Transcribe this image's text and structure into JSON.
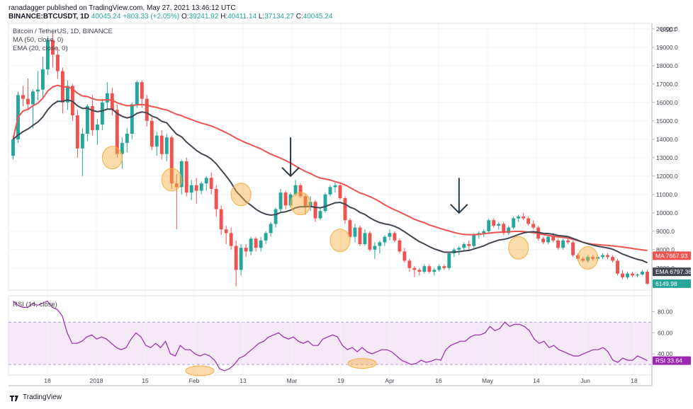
{
  "header": {
    "published": "ranadagger published on TradingView.com, May 27, 2021 13:46:12 UTC",
    "symbol": "BINANCE:BTCUSDT, 1D",
    "last": "40045.24",
    "change": "+803.33 (+2.05%)",
    "o_label": "O:",
    "o": "39241.92",
    "h_label": "H:",
    "h": "40411.14",
    "l_label": "L:",
    "l": "37134.27",
    "c_label": "C:",
    "c": "40045.24"
  },
  "legend": {
    "title": "Bitcoin / TetherUS, 1D, BINANCE",
    "ma": "MA (50, close, 0)",
    "ema": "EMA (20, close, 0)",
    "rsi": "RSI (14, close)"
  },
  "branding": {
    "name": "TradingView"
  },
  "colors": {
    "up": "#26a69a",
    "down": "#ef5350",
    "ma": "#ef5350",
    "ema": "#434651",
    "rsi": "#9c27b0",
    "rsi_band": "#e1bee7",
    "highlight": "#f5b041",
    "arrow": "#2a3944"
  },
  "chart_data": [
    {
      "type": "candlestick",
      "title": "Bitcoin / TetherUS, 1D, BINANCE",
      "currency": "USDT",
      "y_ticks": [
        7000,
        8000,
        9000,
        10000,
        11000,
        12000,
        13000,
        14000,
        15000,
        16000,
        17000,
        18000,
        19000,
        20000
      ],
      "y_range": [
        5800,
        20300
      ],
      "x_ticks": [
        "18",
        "2018",
        "15",
        "Feb",
        "13",
        "Mar",
        "19",
        "Apr",
        "16",
        "May",
        "14",
        "Jun",
        "18"
      ],
      "series": [
        {
          "name": "MA (50, close, 0)",
          "last": 7667.93
        },
        {
          "name": "EMA (20, close, 0)",
          "last": 6797.36
        }
      ],
      "last_price": 6149.98,
      "candles_ohlc": [
        [
          13100,
          14200,
          12900,
          14000
        ],
        [
          14000,
          16600,
          13800,
          16400
        ],
        [
          16400,
          16900,
          15800,
          16200
        ],
        [
          16200,
          17300,
          15600,
          15900
        ],
        [
          15900,
          16700,
          14600,
          16600
        ],
        [
          16600,
          17700,
          16100,
          16700
        ],
        [
          16700,
          18500,
          16300,
          17800
        ],
        [
          17800,
          19600,
          17500,
          19400
        ],
        [
          19400,
          19800,
          17900,
          18600
        ],
        [
          18600,
          19000,
          17300,
          17700
        ],
        [
          17700,
          17900,
          15400,
          16000
        ],
        [
          16000,
          17200,
          15600,
          16900
        ],
        [
          16900,
          17000,
          15000,
          15300
        ],
        [
          15300,
          15600,
          13000,
          13500
        ],
        [
          13500,
          14600,
          12000,
          14300
        ],
        [
          14300,
          15900,
          13900,
          15800
        ],
        [
          15800,
          16400,
          14200,
          14500
        ],
        [
          14500,
          15100,
          13700,
          14800
        ],
        [
          14800,
          16200,
          14500,
          16000
        ],
        [
          16000,
          17100,
          15600,
          16500
        ],
        [
          16500,
          16800,
          15300,
          15600
        ],
        [
          15600,
          15900,
          13000,
          13200
        ],
        [
          13200,
          14100,
          12400,
          13800
        ],
        [
          13800,
          14600,
          13300,
          14300
        ],
        [
          14300,
          16000,
          14000,
          15900
        ],
        [
          15900,
          17200,
          15700,
          17100
        ],
        [
          17100,
          17200,
          15700,
          16200
        ],
        [
          16200,
          16400,
          14700,
          15000
        ],
        [
          15000,
          15200,
          13400,
          13600
        ],
        [
          13600,
          14400,
          13100,
          14200
        ],
        [
          14200,
          14500,
          12900,
          13200
        ],
        [
          13200,
          14300,
          12800,
          14100
        ],
        [
          14100,
          14200,
          11300,
          11600
        ],
        [
          11600,
          12100,
          9100,
          11400
        ],
        [
          11400,
          12900,
          11000,
          12800
        ],
        [
          12800,
          13000,
          10900,
          11100
        ],
        [
          11100,
          11800,
          10700,
          11500
        ],
        [
          11500,
          11900,
          10500,
          11200
        ],
        [
          11200,
          11700,
          11000,
          11600
        ],
        [
          11600,
          12000,
          11200,
          11900
        ],
        [
          11900,
          12200,
          11000,
          11300
        ],
        [
          11300,
          11500,
          9800,
          10200
        ],
        [
          10200,
          10400,
          8800,
          9100
        ],
        [
          9100,
          9300,
          8300,
          8900
        ],
        [
          8900,
          9200,
          8000,
          8200
        ],
        [
          8200,
          8500,
          6000,
          6900
        ],
        [
          6900,
          8300,
          6600,
          8100
        ],
        [
          8100,
          8300,
          7600,
          7900
        ],
        [
          7900,
          8700,
          7700,
          8600
        ],
        [
          8600,
          8700,
          7900,
          8100
        ],
        [
          8100,
          8700,
          7900,
          8500
        ],
        [
          8500,
          9000,
          8300,
          8900
        ],
        [
          8900,
          9500,
          8700,
          9400
        ],
        [
          9400,
          10300,
          9200,
          10200
        ],
        [
          10200,
          11300,
          10000,
          11100
        ],
        [
          11100,
          11200,
          10200,
          10400
        ],
        [
          10400,
          11100,
          10300,
          11000
        ],
        [
          11000,
          11800,
          10900,
          11500
        ],
        [
          11500,
          11600,
          10800,
          10900
        ],
        [
          10900,
          11000,
          9900,
          10300
        ],
        [
          10300,
          10900,
          10100,
          10600
        ],
        [
          10600,
          10700,
          9500,
          9700
        ],
        [
          9700,
          10300,
          9600,
          10100
        ],
        [
          10100,
          11100,
          10000,
          11000
        ],
        [
          11000,
          11500,
          10900,
          11400
        ],
        [
          11400,
          11700,
          11100,
          11500
        ],
        [
          11500,
          11600,
          10700,
          10800
        ],
        [
          10800,
          10900,
          9400,
          9600
        ],
        [
          9600,
          9700,
          8500,
          8700
        ],
        [
          8700,
          9400,
          8400,
          9200
        ],
        [
          9200,
          9300,
          8200,
          8300
        ],
        [
          8300,
          9100,
          8200,
          8900
        ],
        [
          8900,
          9000,
          7900,
          8000
        ],
        [
          8000,
          8400,
          7500,
          8200
        ],
        [
          8200,
          8500,
          7800,
          8400
        ],
        [
          8400,
          8800,
          8200,
          8700
        ],
        [
          8700,
          9100,
          8500,
          8900
        ],
        [
          8900,
          9000,
          8400,
          8500
        ],
        [
          8500,
          8600,
          7800,
          7900
        ],
        [
          7900,
          8100,
          7300,
          7400
        ],
        [
          7400,
          7500,
          6800,
          7000
        ],
        [
          7000,
          7100,
          6500,
          6900
        ],
        [
          6900,
          7000,
          6600,
          6800
        ],
        [
          6800,
          7200,
          6700,
          7100
        ],
        [
          7100,
          7200,
          6700,
          6800
        ],
        [
          6800,
          7000,
          6600,
          6900
        ],
        [
          6900,
          7200,
          6800,
          7100
        ],
        [
          7100,
          7200,
          6900,
          7000
        ],
        [
          7000,
          7900,
          6900,
          7800
        ],
        [
          7800,
          8100,
          7600,
          8000
        ],
        [
          8000,
          8200,
          7700,
          8100
        ],
        [
          8100,
          8400,
          7900,
          8300
        ],
        [
          8300,
          8500,
          8000,
          8200
        ],
        [
          8200,
          8900,
          8100,
          8800
        ],
        [
          8800,
          9000,
          8600,
          8900
        ],
        [
          8900,
          9100,
          8700,
          9000
        ],
        [
          9000,
          9700,
          8900,
          9600
        ],
        [
          9600,
          9700,
          9200,
          9300
        ],
        [
          9300,
          9500,
          9100,
          9400
        ],
        [
          9400,
          9500,
          8800,
          8900
        ],
        [
          8900,
          9300,
          8800,
          9200
        ],
        [
          9200,
          9800,
          9100,
          9700
        ],
        [
          9700,
          9900,
          9500,
          9800
        ],
        [
          9800,
          10000,
          9600,
          9700
        ],
        [
          9700,
          9800,
          9300,
          9400
        ],
        [
          9400,
          9600,
          9100,
          9200
        ],
        [
          9200,
          9300,
          8500,
          8600
        ],
        [
          8600,
          8700,
          8300,
          8400
        ],
        [
          8400,
          8800,
          8300,
          8700
        ],
        [
          8700,
          8900,
          8400,
          8500
        ],
        [
          8500,
          8600,
          8000,
          8100
        ],
        [
          8100,
          8600,
          8000,
          8500
        ],
        [
          8500,
          8700,
          8300,
          8400
        ],
        [
          8400,
          8500,
          7600,
          7700
        ],
        [
          7700,
          7800,
          7400,
          7500
        ],
        [
          7500,
          7600,
          7300,
          7400
        ],
        [
          7400,
          7700,
          7300,
          7600
        ],
        [
          7600,
          7700,
          7400,
          7500
        ],
        [
          7500,
          7700,
          7400,
          7600
        ],
        [
          7600,
          7800,
          7500,
          7700
        ],
        [
          7700,
          7800,
          7500,
          7600
        ],
        [
          7600,
          7700,
          7300,
          7400
        ],
        [
          7400,
          7500,
          6600,
          6700
        ],
        [
          6700,
          6900,
          6400,
          6500
        ],
        [
          6500,
          6800,
          6400,
          6700
        ],
        [
          6700,
          6800,
          6500,
          6600
        ],
        [
          6600,
          6700,
          6500,
          6650
        ],
        [
          6650,
          6900,
          6600,
          6800
        ],
        [
          6800,
          6900,
          6100,
          6150
        ]
      ]
    },
    {
      "type": "line",
      "title": "RSI (14, close)",
      "y_ticks": [
        40,
        60,
        80
      ],
      "y_range": [
        20,
        95
      ],
      "band": [
        30,
        70
      ],
      "last": 33.64,
      "values": [
        90,
        86,
        84,
        84,
        88,
        86,
        88,
        90,
        84,
        82,
        76,
        60,
        50,
        50,
        52,
        56,
        58,
        54,
        56,
        54,
        50,
        46,
        44,
        46,
        54,
        60,
        56,
        48,
        46,
        50,
        46,
        52,
        40,
        38,
        48,
        44,
        44,
        40,
        38,
        40,
        38,
        34,
        26,
        24,
        26,
        30,
        36,
        38,
        42,
        46,
        50,
        52,
        56,
        58,
        60,
        56,
        54,
        56,
        52,
        50,
        52,
        48,
        48,
        54,
        56,
        58,
        56,
        48,
        44,
        46,
        42,
        46,
        42,
        40,
        42,
        44,
        44,
        42,
        38,
        34,
        32,
        30,
        31,
        34,
        32,
        33,
        35,
        34,
        44,
        48,
        50,
        52,
        52,
        56,
        58,
        58,
        60,
        66,
        62,
        64,
        70,
        66,
        68,
        68,
        66,
        62,
        54,
        50,
        52,
        46,
        48,
        44,
        42,
        40,
        38,
        38,
        40,
        42,
        44,
        44,
        46,
        42,
        34,
        32,
        36,
        34,
        34,
        38,
        36,
        33.64
      ]
    }
  ]
}
